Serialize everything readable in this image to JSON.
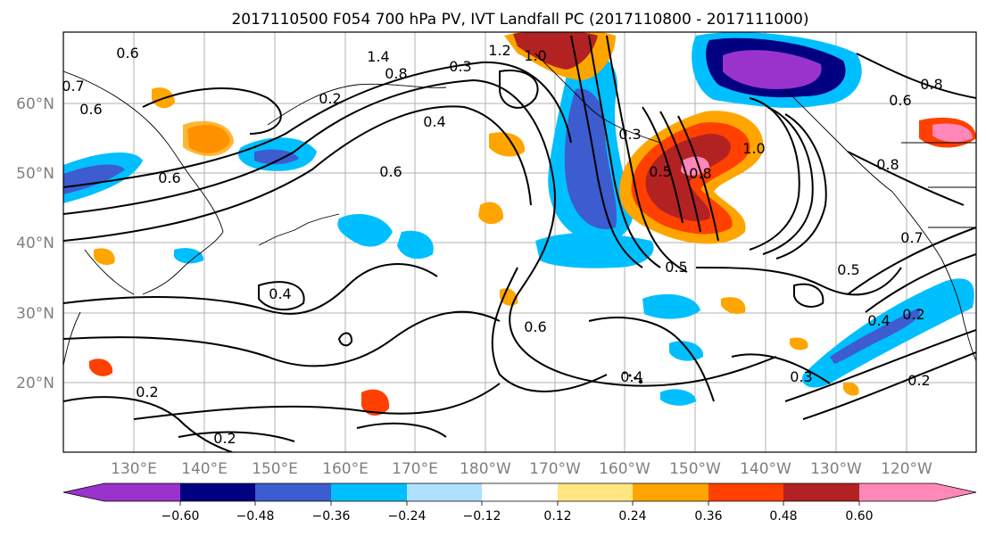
{
  "title": "2017110500 F054 700 hPa PV, IVT Landfall PC (2017110800 - 2017111000)",
  "lat_labels": [
    "60°N",
    "50°N",
    "40°N",
    "30°N",
    "20°N"
  ],
  "lon_labels": [
    "130°E",
    "140°E",
    "150°E",
    "160°E",
    "170°E",
    "180°W",
    "170°W",
    "160°W",
    "150°W",
    "140°W",
    "130°W",
    "120°W"
  ],
  "colorbar": {
    "colors": [
      "#9933cc",
      "#000080",
      "#3c5ccf",
      "#00bfff",
      "#b0e0ff",
      "#ffffff",
      "#ffe680",
      "#ffa500",
      "#ff4000",
      "#b22222",
      "#ff88b8"
    ],
    "tick_labels": [
      "−0.60",
      "−0.48",
      "−0.36",
      "−0.24",
      "−0.12",
      "0.12",
      "0.24",
      "0.36",
      "0.48",
      "0.60"
    ]
  },
  "contour_labels": [
    "0.6",
    "0.6",
    "0.7",
    "1.4",
    "0.8",
    "0.3",
    "1.2",
    "1.0",
    "0.2",
    "0.4",
    "0.6",
    "0.6",
    "0.5",
    "0.8",
    "1.0",
    "0.8",
    "0.6",
    "0.8",
    "0.7",
    "0.5",
    "0.5",
    "0.4",
    "0.6",
    "0.4",
    "0.3",
    "0.4",
    "0.2",
    "0.2",
    "0.2",
    "0.2",
    "0.3"
  ]
}
